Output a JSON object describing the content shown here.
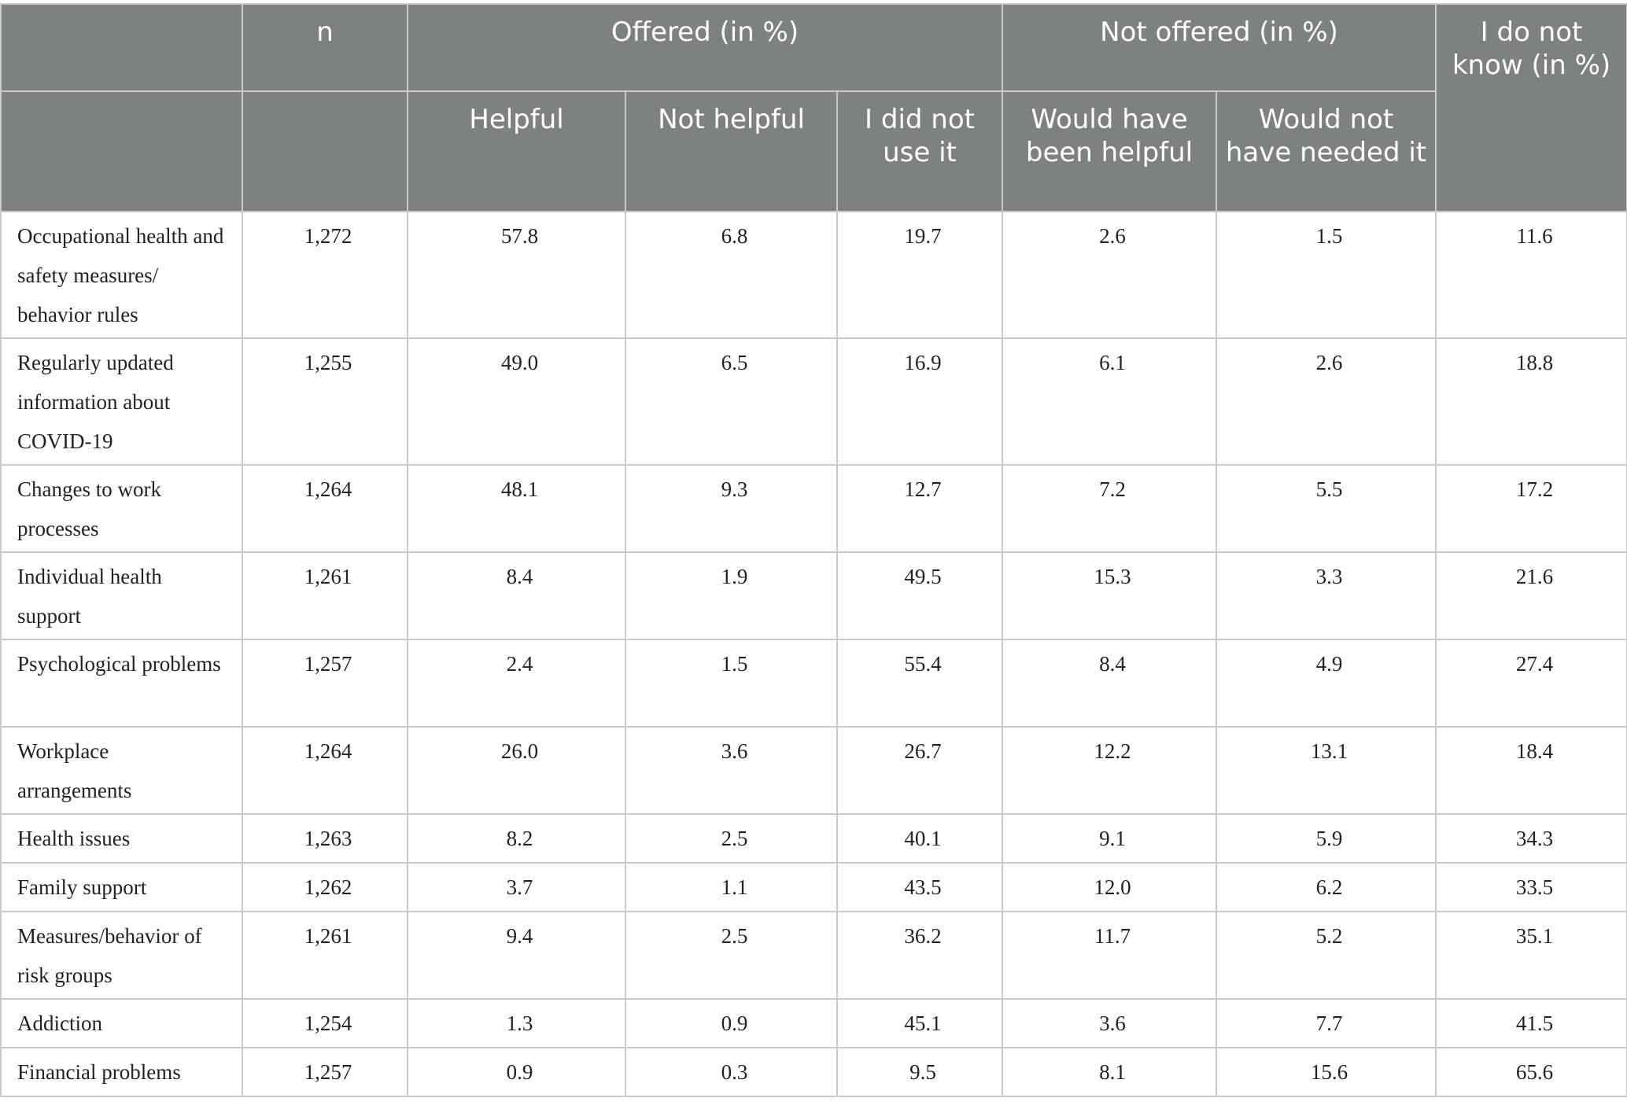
{
  "table": {
    "header_top": {
      "blank": "",
      "n": "n",
      "offered": "Offered (in %)",
      "not_offered": "Not offered (in %)",
      "do_not_know": "I do not know (in %)"
    },
    "header_sub": {
      "helpful": "Helpful",
      "not_helpful": "Not helpful",
      "did_not_use": "I did not use it",
      "would_have_been_helpful": "Would have been helpful",
      "would_not_have_needed": "Would not have needed it"
    },
    "rows": [
      {
        "label": "Occupational health and safety measures/ behavior rules",
        "n": "1,272",
        "helpful": "57.8",
        "not_helpful": "6.8",
        "did_not_use": "19.7",
        "would_have_been_helpful": "2.6",
        "would_not_have_needed": "1.5",
        "do_not_know": "11.6"
      },
      {
        "label": "Regularly updated information about COVID-19",
        "n": "1,255",
        "helpful": "49.0",
        "not_helpful": "6.5",
        "did_not_use": "16.9",
        "would_have_been_helpful": "6.1",
        "would_not_have_needed": "2.6",
        "do_not_know": "18.8"
      },
      {
        "label": "Changes to work processes",
        "n": "1,264",
        "helpful": "48.1",
        "not_helpful": "9.3",
        "did_not_use": "12.7",
        "would_have_been_helpful": "7.2",
        "would_not_have_needed": "5.5",
        "do_not_know": "17.2"
      },
      {
        "label": "Individual health support",
        "n": "1,261",
        "helpful": "8.4",
        "not_helpful": "1.9",
        "did_not_use": "49.5",
        "would_have_been_helpful": "15.3",
        "would_not_have_needed": "3.3",
        "do_not_know": "21.6"
      },
      {
        "label": "Psychological problems",
        "n": "1,257",
        "helpful": "2.4",
        "not_helpful": "1.5",
        "did_not_use": "55.4",
        "would_have_been_helpful": "8.4",
        "would_not_have_needed": "4.9",
        "do_not_know": "27.4"
      },
      {
        "label": "Workplace arrangements",
        "n": "1,264",
        "helpful": "26.0",
        "not_helpful": "3.6",
        "did_not_use": "26.7",
        "would_have_been_helpful": "12.2",
        "would_not_have_needed": "13.1",
        "do_not_know": "18.4"
      },
      {
        "label": "Health issues",
        "n": "1,263",
        "helpful": "8.2",
        "not_helpful": "2.5",
        "did_not_use": "40.1",
        "would_have_been_helpful": "9.1",
        "would_not_have_needed": "5.9",
        "do_not_know": "34.3"
      },
      {
        "label": "Family support",
        "n": "1,262",
        "helpful": "3.7",
        "not_helpful": "1.1",
        "did_not_use": "43.5",
        "would_have_been_helpful": "12.0",
        "would_not_have_needed": "6.2",
        "do_not_know": "33.5"
      },
      {
        "label": "Measures/behavior of risk groups",
        "n": "1,261",
        "helpful": "9.4",
        "not_helpful": "2.5",
        "did_not_use": "36.2",
        "would_have_been_helpful": "11.7",
        "would_not_have_needed": "5.2",
        "do_not_know": "35.1"
      },
      {
        "label": "Addiction",
        "n": "1,254",
        "helpful": "1.3",
        "not_helpful": "0.9",
        "did_not_use": "45.1",
        "would_have_been_helpful": "3.6",
        "would_not_have_needed": "7.7",
        "do_not_know": "41.5"
      },
      {
        "label": "Financial problems",
        "n": "1,257",
        "helpful": "0.9",
        "not_helpful": "0.3",
        "did_not_use": "9.5",
        "would_have_been_helpful": "8.1",
        "would_not_have_needed": "15.6",
        "do_not_know": "65.6"
      }
    ]
  }
}
